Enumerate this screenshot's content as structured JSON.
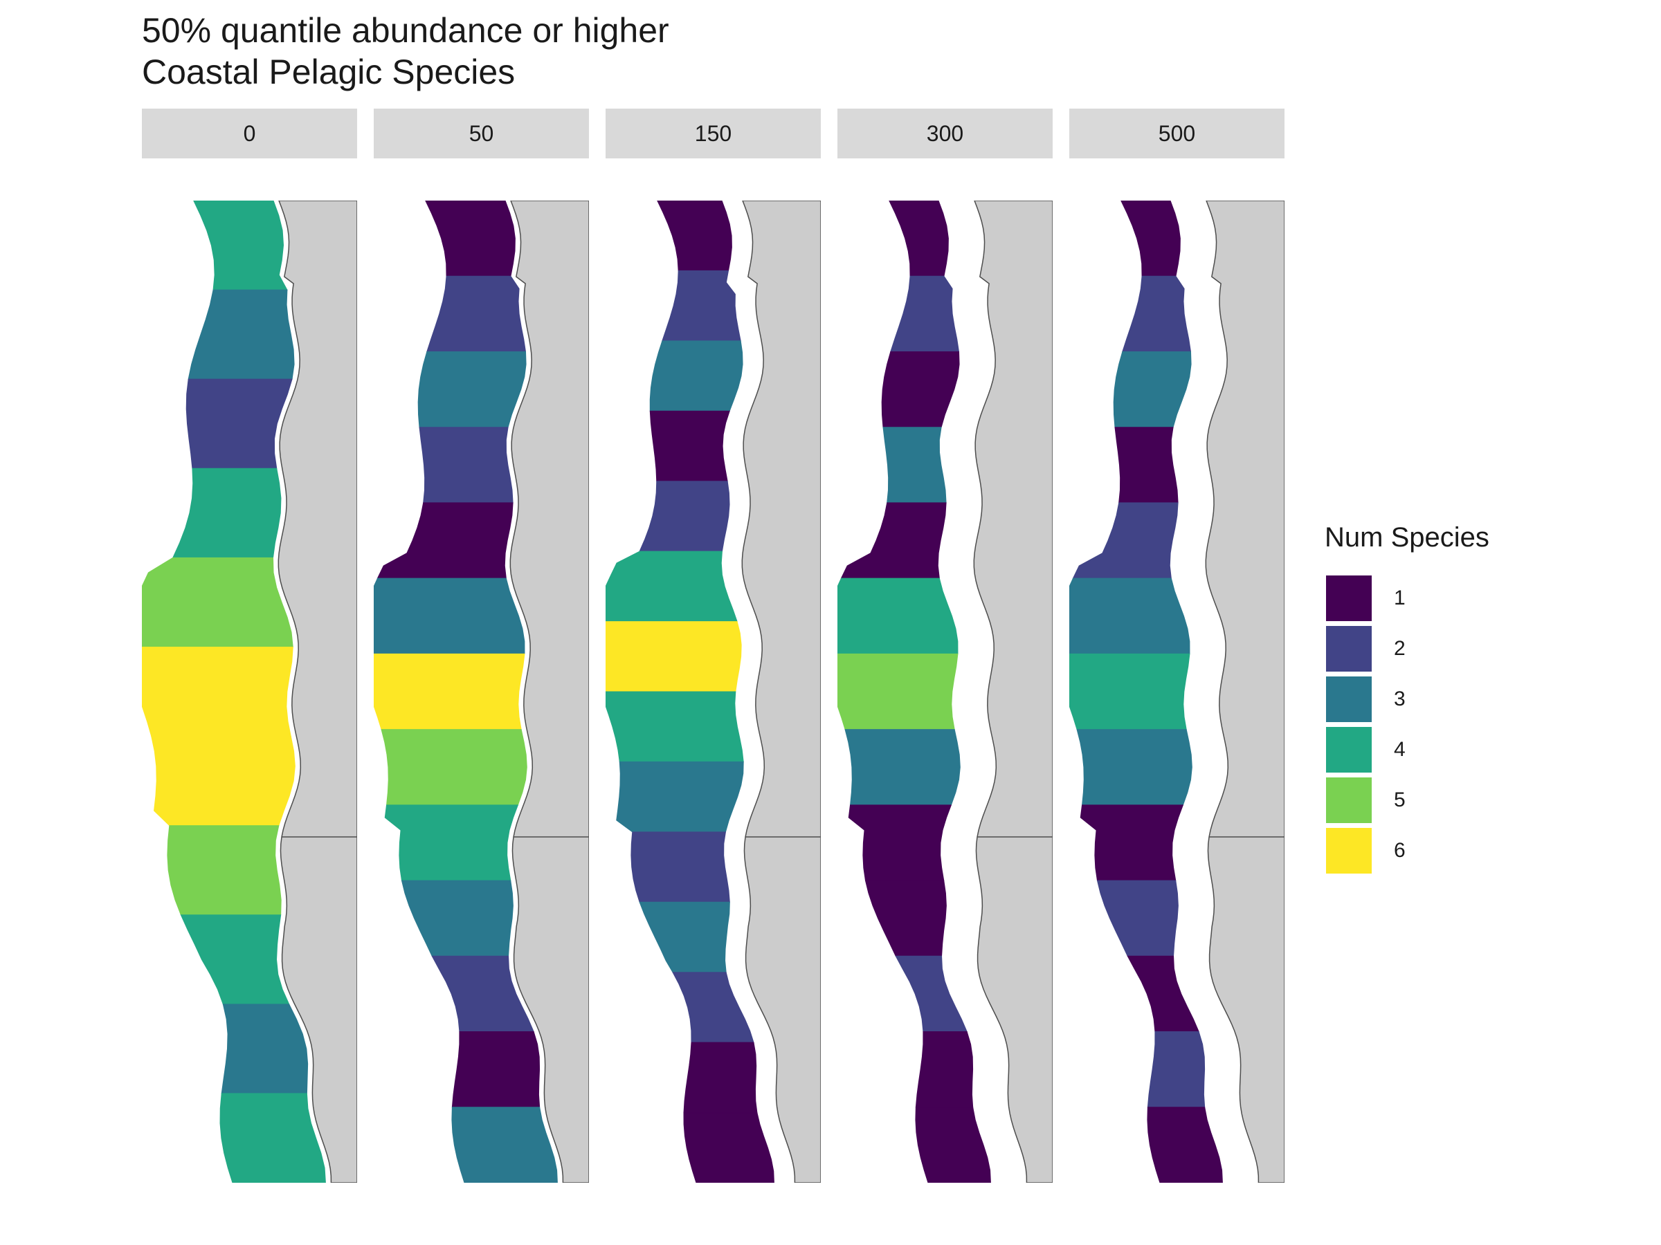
{
  "title": {
    "line1": "50% quantile abundance or higher",
    "line2": "Coastal Pelagic Species"
  },
  "facets": [
    {
      "label": "0",
      "zones": [
        4,
        3,
        2,
        4,
        5,
        6,
        6,
        5,
        4,
        3,
        4
      ],
      "offshore_gap": 0
    },
    {
      "label": "50",
      "zones": [
        1,
        2,
        3,
        2,
        1,
        3,
        6,
        5,
        4,
        3,
        2,
        1,
        3
      ],
      "offshore_gap": 0
    },
    {
      "label": "150",
      "zones": [
        1,
        2,
        3,
        1,
        2,
        4,
        6,
        4,
        3,
        2,
        3,
        2,
        1,
        1
      ],
      "offshore_gap": 1
    },
    {
      "label": "300",
      "zones": [
        1,
        2,
        1,
        3,
        1,
        4,
        5,
        3,
        1,
        1,
        2,
        1,
        1
      ],
      "offshore_gap": 2
    },
    {
      "label": "500",
      "zones": [
        1,
        2,
        3,
        1,
        2,
        3,
        4,
        3,
        1,
        2,
        1,
        2,
        1
      ],
      "offshore_gap": 2
    }
  ],
  "legend": {
    "title": "Num Species",
    "items": [
      {
        "label": "1",
        "value": 1,
        "color": "#440154"
      },
      {
        "label": "2",
        "value": 2,
        "color": "#414487"
      },
      {
        "label": "3",
        "value": 3,
        "color": "#2a788e"
      },
      {
        "label": "4",
        "value": 4,
        "color": "#22a884"
      },
      {
        "label": "5",
        "value": 5,
        "color": "#7ad151"
      },
      {
        "label": "6",
        "value": 6,
        "color": "#fde725"
      }
    ]
  },
  "colors": {
    "land": "#cccccc",
    "coastline": "#4d4d4d",
    "strip_background": "#d9d9d9"
  }
}
